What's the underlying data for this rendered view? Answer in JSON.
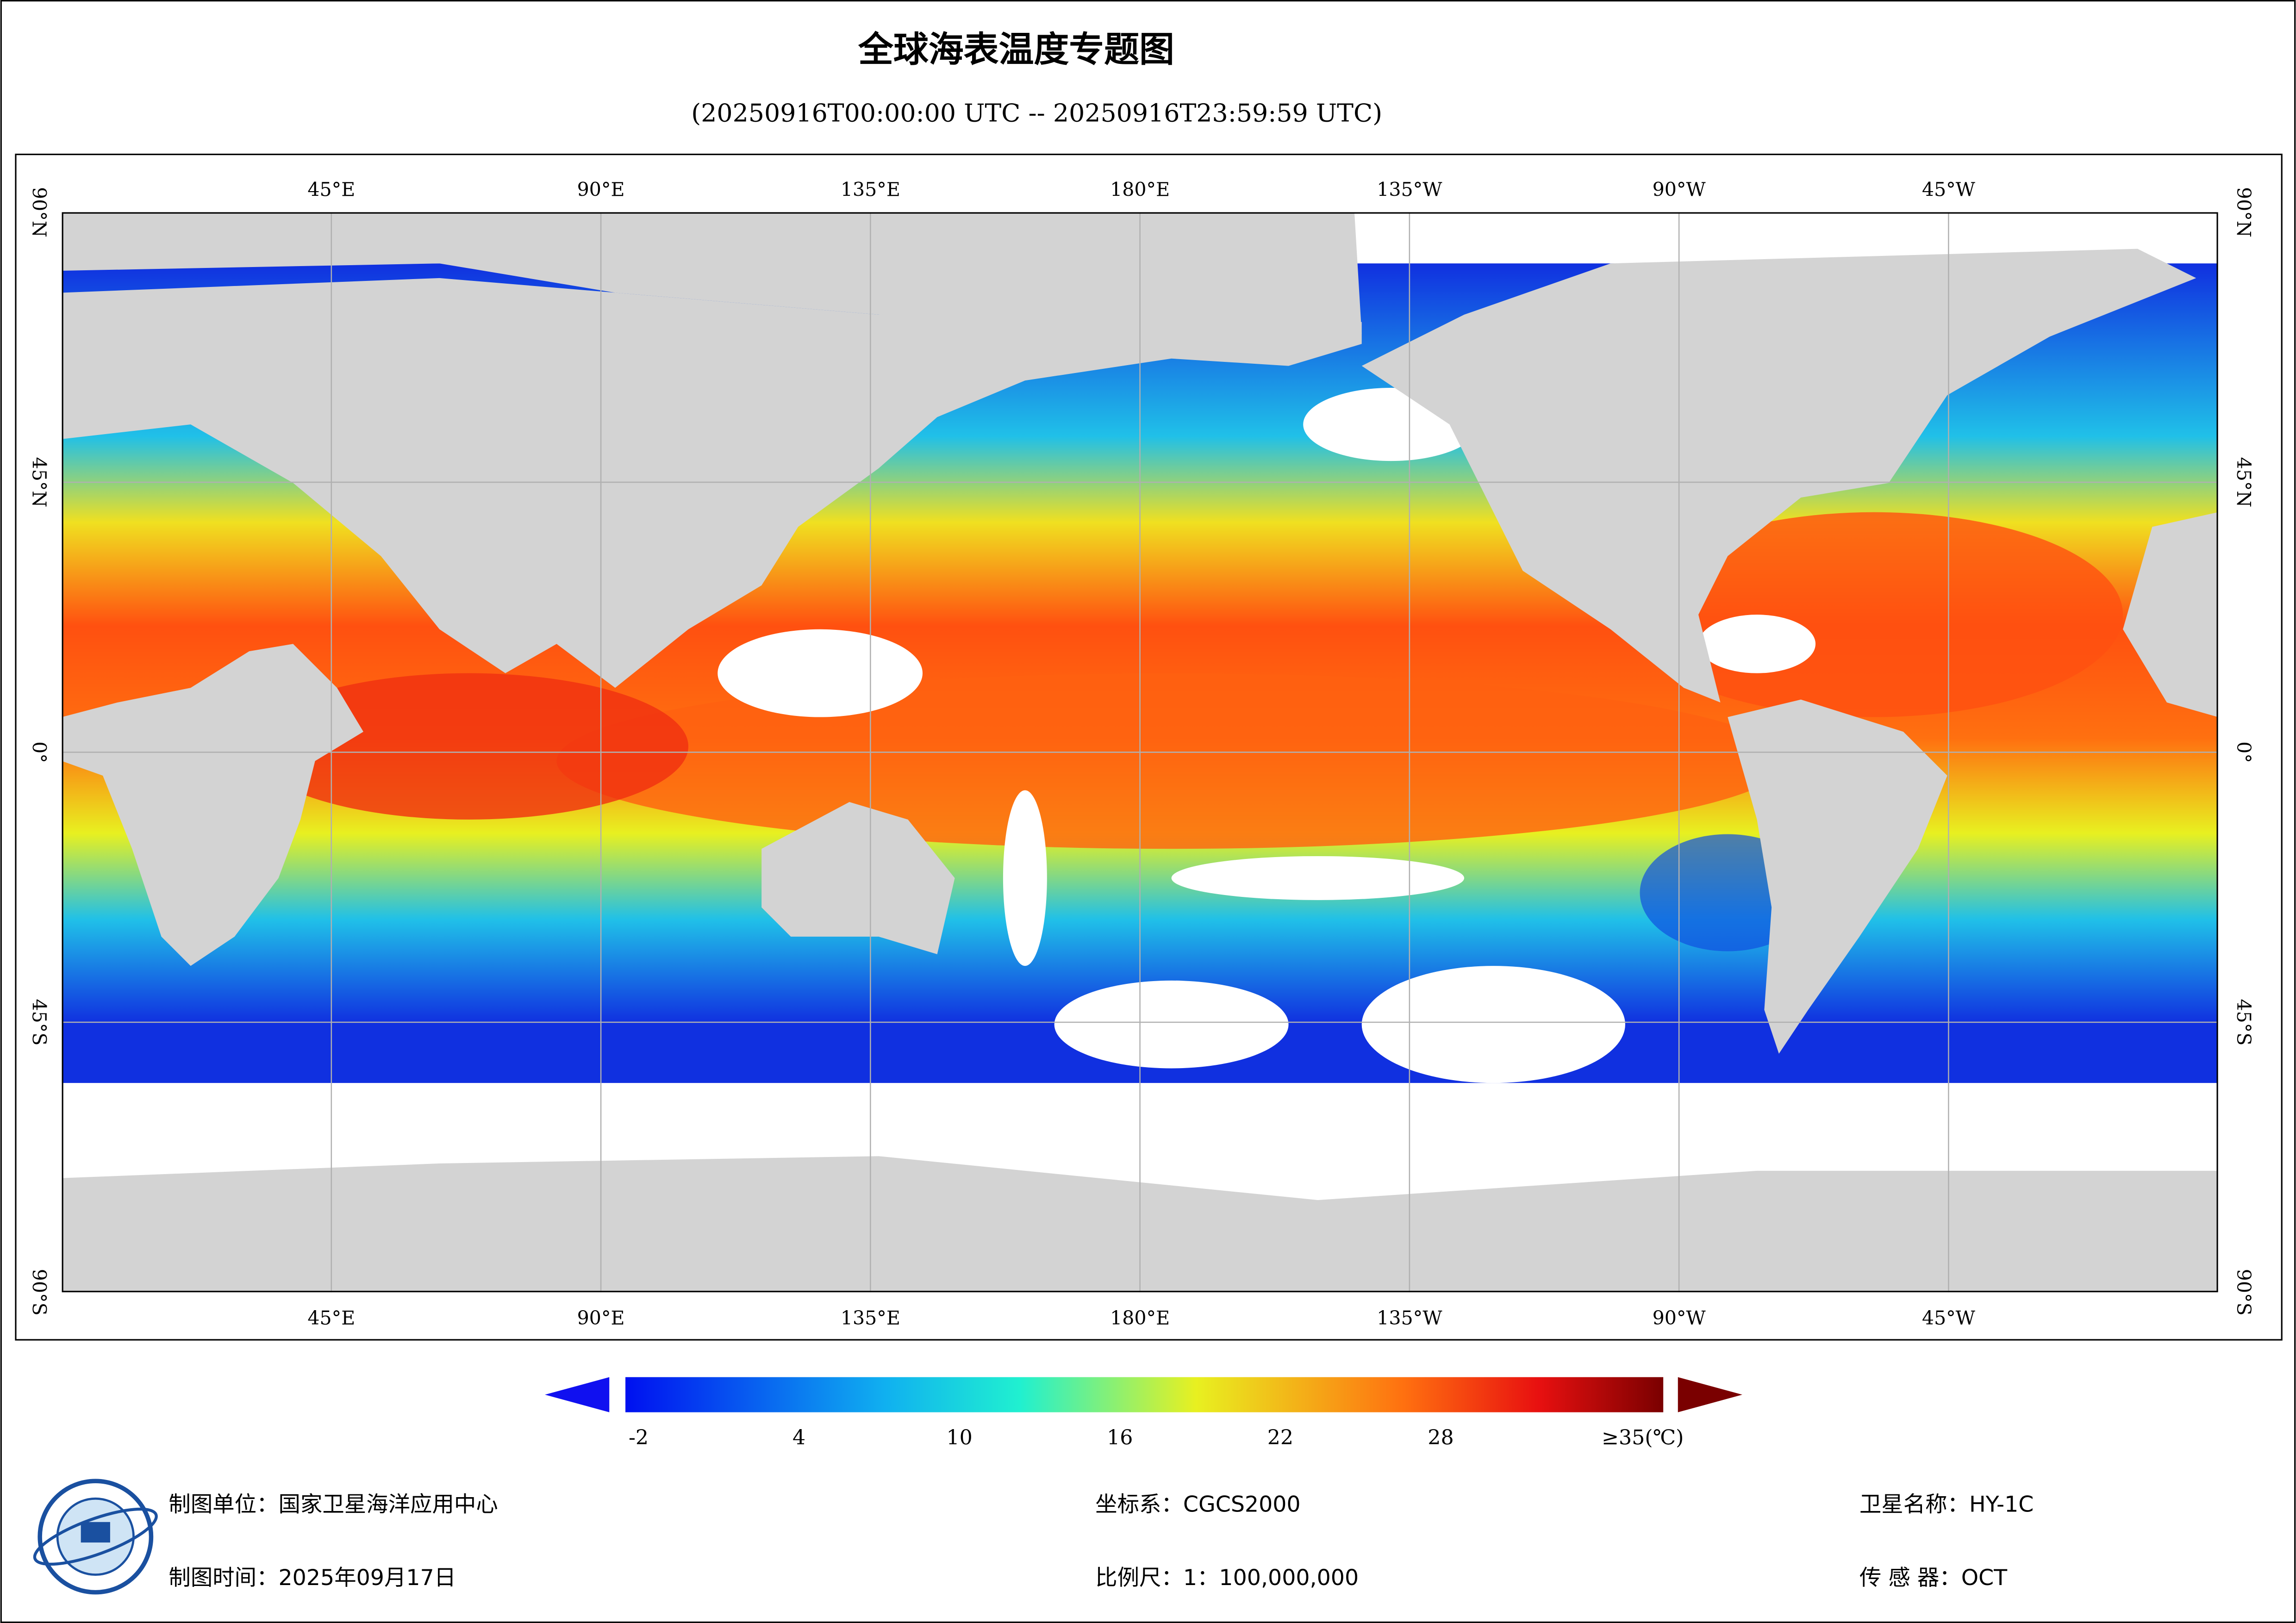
{
  "header": {
    "title": "全球海表温度专题图",
    "subtitle": "(20250916T00:00:00 UTC -- 20250916T23:59:59 UTC)"
  },
  "map": {
    "lon_labels": [
      "45°E",
      "90°E",
      "135°E",
      "180°E",
      "135°W",
      "90°W",
      "45°W"
    ],
    "lat_labels": [
      "90°N",
      "45°N",
      "0°",
      "45°S",
      "90°S"
    ]
  },
  "colorbar": {
    "ticks": [
      -2,
      4,
      10,
      16,
      22,
      28,
      {
        "value": 35,
        "label": "≥35(℃)"
      }
    ]
  },
  "footer": {
    "unit": "制图单位：国家卫星海洋应用中心",
    "date": "制图时间：2025年09月17日",
    "crs": "坐标系：CGCS2000",
    "scale": "比例尺：1：100,000,000",
    "satellite": "卫星名称：HY-1C",
    "sensor": "传 感 器：OCT"
  }
}
